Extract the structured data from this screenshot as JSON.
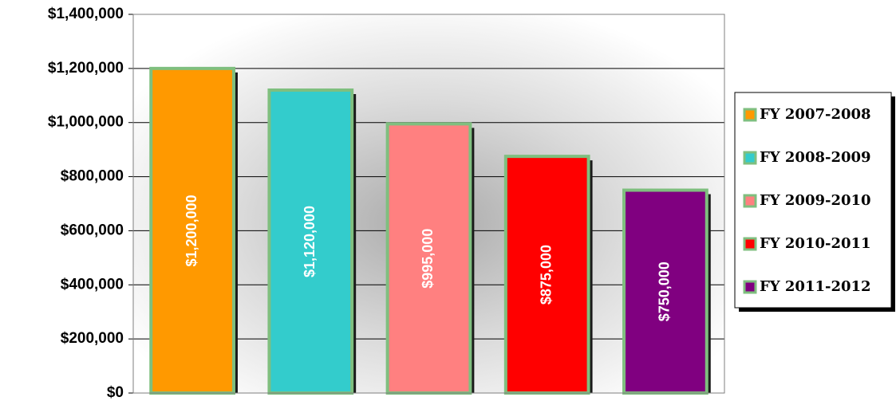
{
  "chart_data": {
    "type": "bar",
    "title": "",
    "xlabel": "",
    "ylabel": "",
    "ylim": [
      0,
      1400000
    ],
    "y_ticks": [
      0,
      200000,
      400000,
      600000,
      800000,
      1000000,
      1200000,
      1400000
    ],
    "y_tick_labels": [
      "$0",
      "$200,000",
      "$400,000",
      "$600,000",
      "$800,000",
      "$1,000,000",
      "$1,200,000",
      "$1,400,000"
    ],
    "grid": true,
    "legend_position": "right",
    "categories": [
      "FY 2007-2008",
      "FY 2008-2009",
      "FY 2009-2010",
      "FY 2010-2011",
      "FY 2011-2012"
    ],
    "values": [
      1200000,
      1120000,
      995000,
      875000,
      750000
    ],
    "data_labels": [
      "$1,200,000",
      "$1,120,000",
      "$995,000",
      "$875,000",
      "$750,000"
    ],
    "colors": [
      "#FF9900",
      "#33CCCC",
      "#FF8080",
      "#FF0000",
      "#800080"
    ],
    "bar_border_color": "#7FBF7F"
  }
}
